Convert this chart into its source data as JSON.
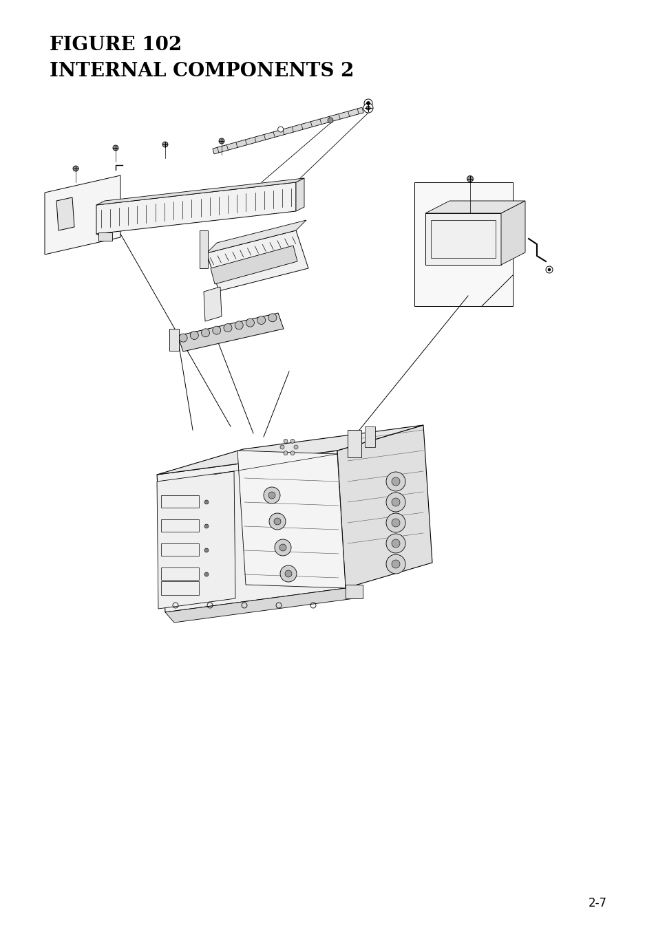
{
  "title_line1": "FIGURE 102",
  "title_line2": "INTERNAL COMPONENTS 2",
  "page_number": "2-7",
  "background_color": "#ffffff",
  "text_color": "#000000",
  "title_fontsize1": 20,
  "title_fontsize2": 20,
  "page_num_fontsize": 12,
  "fig_width": 9.54,
  "fig_height": 13.52,
  "dpi": 100
}
